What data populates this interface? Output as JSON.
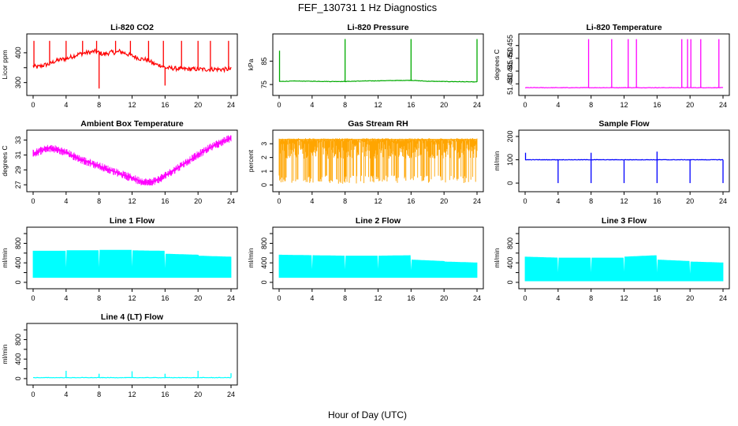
{
  "figure": {
    "title": "FEF_130731  1 Hz Diagnostics",
    "xlabel": "Hour of Day (UTC)"
  },
  "chart_data": [
    {
      "type": "line",
      "title": "Li-820 CO2",
      "ylabel": "Licor ppm",
      "color": "#ff0000",
      "xlim": [
        0,
        24
      ],
      "ylim": [
        270,
        450
      ],
      "xticks": [
        0,
        4,
        8,
        12,
        16,
        20,
        24
      ],
      "yticks": [
        300,
        350,
        400
      ],
      "yticklabels": [
        "300",
        "",
        "400"
      ],
      "series": [
        {
          "x": [
            0,
            0.5,
            1,
            1.5,
            2,
            2.5,
            3,
            3.5,
            4,
            4.5,
            5,
            5.5,
            6,
            6.5,
            7,
            7.5,
            8,
            8.5,
            9,
            9.5,
            10,
            10.5,
            11,
            11.5,
            12,
            12.5,
            13,
            13.5,
            14,
            14.5,
            15,
            15.5,
            16,
            17,
            18,
            19,
            20,
            21,
            22,
            23,
            24
          ],
          "y": [
            355,
            352,
            356,
            360,
            362,
            370,
            375,
            378,
            380,
            385,
            390,
            395,
            398,
            400,
            402,
            405,
            400,
            395,
            398,
            402,
            400,
            405,
            400,
            395,
            390,
            385,
            380,
            378,
            375,
            365,
            360,
            358,
            350,
            348,
            346,
            345,
            345,
            344,
            345,
            344,
            345
          ]
        }
      ],
      "spikes": [
        {
          "x": 0.1,
          "y": 440
        },
        {
          "x": 2.0,
          "y": 440
        },
        {
          "x": 4.0,
          "y": 440
        },
        {
          "x": 6.0,
          "y": 440
        },
        {
          "x": 7.7,
          "y": 440
        },
        {
          "x": 8.0,
          "y": 280
        },
        {
          "x": 10.0,
          "y": 440
        },
        {
          "x": 11.8,
          "y": 440
        },
        {
          "x": 14.0,
          "y": 440
        },
        {
          "x": 15.8,
          "y": 440
        },
        {
          "x": 16.0,
          "y": 290
        },
        {
          "x": 18.0,
          "y": 440
        },
        {
          "x": 20.0,
          "y": 440
        },
        {
          "x": 21.5,
          "y": 440
        },
        {
          "x": 23.7,
          "y": 440
        }
      ]
    },
    {
      "type": "line",
      "title": "Li-820 Pressure",
      "ylabel": "kPa",
      "color": "#00aa00",
      "xlim": [
        0,
        24
      ],
      "ylim": [
        72,
        95
      ],
      "xticks": [
        0,
        4,
        8,
        12,
        16,
        20,
        24
      ],
      "yticks": [
        75,
        85
      ],
      "yticklabels": [
        "75",
        "85"
      ],
      "series": [
        {
          "x": [
            0,
            2,
            4,
            6,
            8,
            10,
            12,
            14,
            16,
            18,
            20,
            22,
            24
          ],
          "y": [
            76.3,
            76.5,
            76.4,
            76.3,
            76.3,
            76.5,
            76.6,
            76.7,
            76.8,
            76.4,
            76.3,
            76.2,
            76.1
          ]
        }
      ],
      "spikes": [
        {
          "x": 0.05,
          "y": 89.5
        },
        {
          "x": 8.0,
          "y": 94.5
        },
        {
          "x": 16.0,
          "y": 94.5
        },
        {
          "x": 24.0,
          "y": 94.5
        }
      ]
    },
    {
      "type": "line",
      "title": "Li-820 Temperature",
      "ylabel": "degrees C",
      "color": "#ff00ff",
      "xlim": [
        0,
        24
      ],
      "ylim": [
        51.437,
        51.458
      ],
      "xticks": [
        0,
        4,
        8,
        12,
        16,
        20,
        24
      ],
      "yticks": [
        51.44,
        51.445,
        51.45,
        51.455
      ],
      "yticklabels": [
        "51.440",
        "51.445",
        "51.450",
        "51.455"
      ],
      "series": [
        {
          "x": [
            0,
            24
          ],
          "y": [
            51.4385,
            51.4385
          ]
        }
      ],
      "spikes": [
        {
          "x": 7.7,
          "y": 51.4575
        },
        {
          "x": 10.5,
          "y": 51.4575
        },
        {
          "x": 12.5,
          "y": 51.4575
        },
        {
          "x": 13.5,
          "y": 51.4575
        },
        {
          "x": 19.0,
          "y": 51.4575
        },
        {
          "x": 19.7,
          "y": 51.4575
        },
        {
          "x": 20.1,
          "y": 51.4575
        },
        {
          "x": 21.3,
          "y": 51.4575
        },
        {
          "x": 23.5,
          "y": 51.4575
        }
      ]
    },
    {
      "type": "line",
      "title": "Ambient Box Temperature",
      "ylabel": "degrees C",
      "color": "#ff00ff",
      "xlim": [
        0,
        24
      ],
      "ylim": [
        26.6,
        33.8
      ],
      "xticks": [
        0,
        4,
        8,
        12,
        16,
        20,
        24
      ],
      "yticks": [
        27,
        29,
        31,
        33
      ],
      "yticklabels": [
        "27",
        "29",
        "31",
        "33"
      ],
      "series": [
        {
          "x": [
            0,
            1,
            2,
            3,
            4,
            5,
            6,
            7,
            8,
            9,
            10,
            11,
            12,
            13,
            14,
            15,
            16,
            17,
            18,
            19,
            20,
            21,
            22,
            23,
            24
          ],
          "y": [
            31.2,
            31.6,
            31.9,
            31.7,
            31.3,
            30.8,
            30.3,
            29.9,
            29.5,
            29.1,
            28.7,
            28.3,
            27.9,
            27.5,
            27.3,
            27.6,
            28.2,
            28.9,
            29.6,
            30.3,
            31.0,
            31.7,
            32.3,
            32.8,
            33.3
          ]
        }
      ],
      "band": 0.55
    },
    {
      "type": "line",
      "title": "Gas Stream RH",
      "ylabel": "percent",
      "color": "#ffa500",
      "xlim": [
        0,
        24
      ],
      "ylim": [
        -0.2,
        3.7
      ],
      "xticks": [
        0,
        4,
        8,
        12,
        16,
        20,
        24
      ],
      "yticks": [
        0,
        1,
        2,
        3
      ],
      "yticklabels": [
        "0",
        "1",
        "2",
        "3"
      ],
      "series": [
        {
          "x": [
            0,
            4,
            8,
            12,
            16,
            20,
            24
          ],
          "y": [
            3.3,
            3.3,
            3.3,
            3.3,
            3.3,
            3.3,
            3.3
          ]
        }
      ],
      "band": 3.2
    },
    {
      "type": "line",
      "title": "Sample Flow",
      "ylabel": "ml/min",
      "color": "#0000ff",
      "xlim": [
        0,
        24
      ],
      "ylim": [
        -20,
        210
      ],
      "xticks": [
        0,
        4,
        8,
        12,
        16,
        20,
        24
      ],
      "yticks": [
        0,
        100,
        200
      ],
      "yticklabels": [
        "0",
        "100",
        "200"
      ],
      "series": [
        {
          "x": [
            0,
            4,
            8,
            12,
            16,
            20,
            24
          ],
          "y": [
            100,
            100,
            100,
            100,
            100,
            100,
            100
          ]
        }
      ],
      "spikes": [
        {
          "x": 0.05,
          "y": 130
        },
        {
          "x": 4.0,
          "y": 0
        },
        {
          "x": 8.0,
          "y": 0
        },
        {
          "x": 8.0,
          "y": 130
        },
        {
          "x": 12.0,
          "y": 0
        },
        {
          "x": 16.0,
          "y": 0
        },
        {
          "x": 16.0,
          "y": 135
        },
        {
          "x": 20.0,
          "y": 0
        },
        {
          "x": 24.0,
          "y": 0
        }
      ]
    },
    {
      "type": "area",
      "title": "Line 1 Flow",
      "ylabel": "ml/min",
      "color": "#00ffff",
      "xlim": [
        0,
        24
      ],
      "ylim": [
        -50,
        1050
      ],
      "xticks": [
        0,
        4,
        8,
        12,
        16,
        20,
        24
      ],
      "yticks": [
        0,
        200,
        400,
        600,
        800,
        1000
      ],
      "yticklabels": [
        "0",
        "",
        "400",
        "",
        "800",
        ""
      ],
      "series": [
        {
          "x": [
            0,
            4,
            4,
            8,
            8,
            12,
            12,
            16,
            16,
            20,
            20,
            24
          ],
          "y": [
            640,
            640,
            650,
            650,
            660,
            660,
            650,
            640,
            580,
            560,
            540,
            520
          ]
        }
      ],
      "baseline": 100,
      "gaps": [
        4,
        8,
        12,
        16
      ]
    },
    {
      "type": "area",
      "title": "Line 2 Flow",
      "ylabel": "ml/min",
      "color": "#00ffff",
      "xlim": [
        0,
        24
      ],
      "ylim": [
        -50,
        1050
      ],
      "xticks": [
        0,
        4,
        8,
        12,
        16,
        20,
        24
      ],
      "yticks": [
        0,
        200,
        400,
        600,
        800,
        1000
      ],
      "yticklabels": [
        "0",
        "",
        "400",
        "",
        "800",
        ""
      ],
      "series": [
        {
          "x": [
            0,
            4,
            4,
            8,
            8,
            12,
            12,
            16,
            16,
            20,
            20,
            24
          ],
          "y": [
            560,
            550,
            550,
            540,
            540,
            540,
            540,
            550,
            460,
            430,
            420,
            400
          ]
        }
      ],
      "baseline": 100,
      "gaps": [
        4,
        8,
        12,
        16
      ]
    },
    {
      "type": "area",
      "title": "Line 3 Flow",
      "ylabel": "ml/min",
      "color": "#00ffff",
      "xlim": [
        0,
        24
      ],
      "ylim": [
        -50,
        1050
      ],
      "xticks": [
        0,
        4,
        8,
        12,
        16,
        20,
        24
      ],
      "yticks": [
        0,
        200,
        400,
        600,
        800,
        1000
      ],
      "yticklabels": [
        "0",
        "",
        "400",
        "",
        "800",
        ""
      ],
      "series": [
        {
          "x": [
            0,
            4,
            4,
            8,
            8,
            12,
            12,
            16,
            16,
            20,
            20,
            24
          ],
          "y": [
            520,
            500,
            500,
            500,
            500,
            500,
            520,
            550,
            460,
            430,
            420,
            400
          ]
        }
      ],
      "baseline": 30,
      "gaps": [
        4,
        8,
        12,
        16,
        20
      ]
    },
    {
      "type": "line",
      "title": "Line 4 (LT) Flow",
      "ylabel": "ml/min",
      "color": "#00ffff",
      "xlim": [
        0,
        24
      ],
      "ylim": [
        -50,
        1050
      ],
      "xticks": [
        0,
        4,
        8,
        12,
        16,
        20,
        24
      ],
      "yticks": [
        0,
        200,
        400,
        600,
        800,
        1000
      ],
      "yticklabels": [
        "0",
        "",
        "400",
        "",
        "800",
        ""
      ],
      "series": [
        {
          "x": [
            0,
            4,
            8,
            12,
            16,
            20,
            24
          ],
          "y": [
            20,
            20,
            20,
            20,
            20,
            20,
            20
          ]
        }
      ],
      "spikes": [
        {
          "x": 4.0,
          "y": 160
        },
        {
          "x": 8.0,
          "y": 100
        },
        {
          "x": 12.0,
          "y": 150
        },
        {
          "x": 16.0,
          "y": 100
        },
        {
          "x": 20.0,
          "y": 160
        },
        {
          "x": 24.0,
          "y": 110
        }
      ]
    }
  ]
}
